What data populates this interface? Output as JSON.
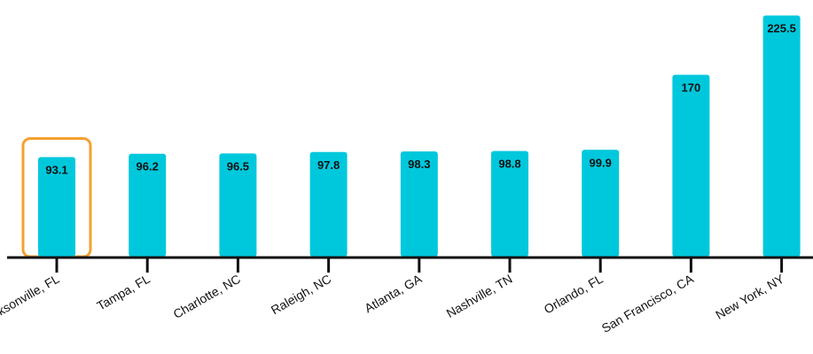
{
  "chart_data": {
    "type": "bar",
    "categories": [
      "Jacksonville, FL",
      "Tampa, FL",
      "Charlotte, NC",
      "Raleigh, NC",
      "Atlanta, GA",
      "Nashville, TN",
      "Orlando, FL",
      "San Francisco, CA",
      "New York, NY"
    ],
    "values": [
      93.1,
      96.2,
      96.5,
      97.8,
      98.3,
      98.8,
      99.9,
      170,
      225.5
    ],
    "value_labels": [
      "93.1",
      "96.2",
      "96.5",
      "97.8",
      "98.3",
      "98.8",
      "99.9",
      "170",
      "225.5"
    ],
    "highlighted_category": "Jacksonville, FL",
    "title": "",
    "xlabel": "",
    "ylabel": "",
    "ylim": [
      0,
      230
    ],
    "grid": false,
    "legend": "none",
    "colors": {
      "bar": "#00c8dc",
      "highlight": "#f5a030",
      "axis": "#111111",
      "text": "#111111"
    }
  }
}
